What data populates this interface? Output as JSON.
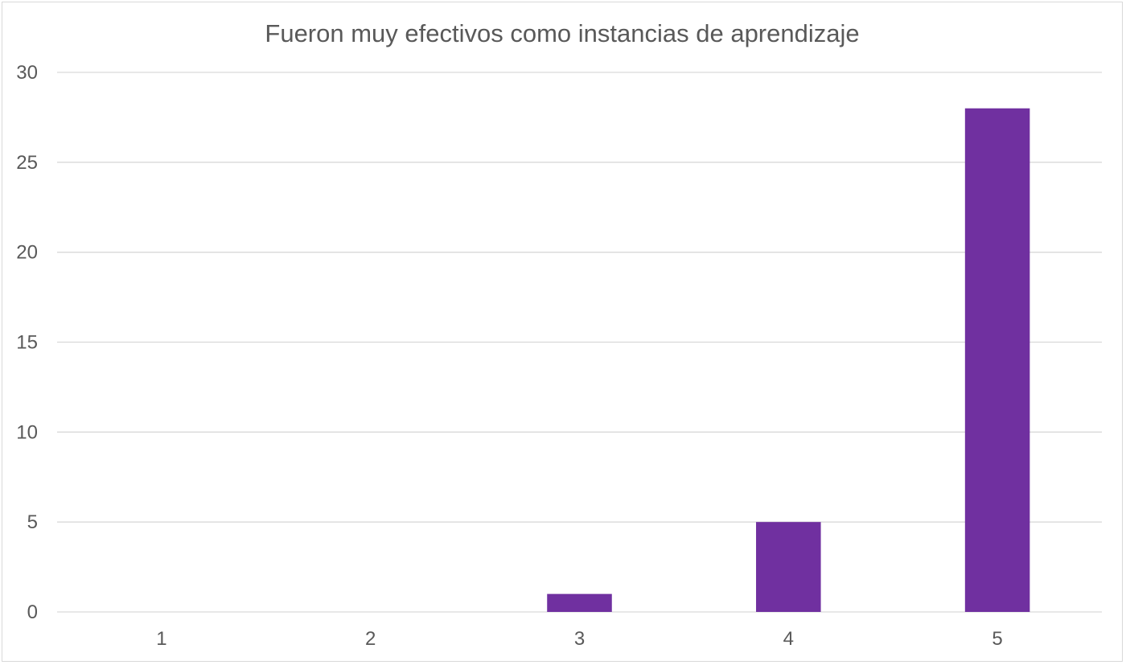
{
  "chart_data": {
    "type": "bar",
    "title": "Fueron muy efectivos como instancias de aprendizaje",
    "categories": [
      "1",
      "2",
      "3",
      "4",
      "5"
    ],
    "values": [
      0,
      0,
      1,
      5,
      28
    ],
    "ylim": [
      0,
      30
    ],
    "yticks": [
      0,
      5,
      10,
      15,
      20,
      25,
      30
    ],
    "xlabel": "",
    "ylabel": "",
    "grid": true,
    "legend": "none",
    "colors": {
      "bar": "#7030a0",
      "grid": "#d9d9d9",
      "text": "#595959"
    }
  }
}
